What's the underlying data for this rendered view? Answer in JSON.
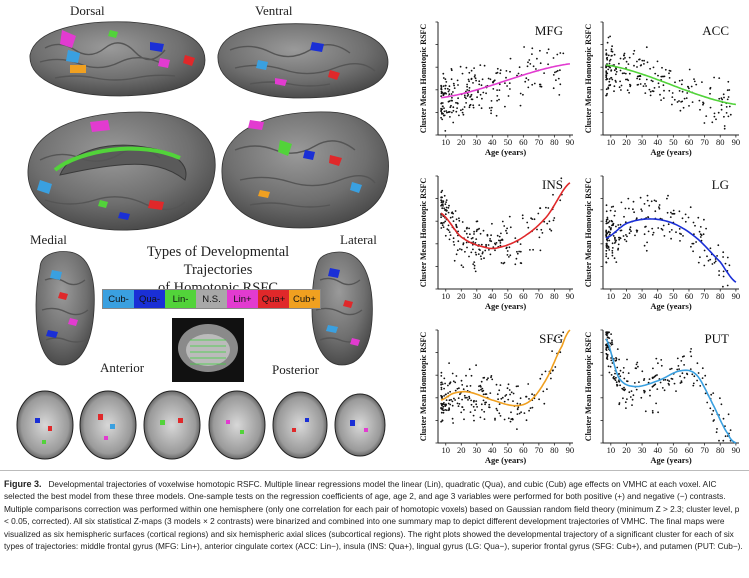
{
  "figure": {
    "views": {
      "dorsal": "Dorsal",
      "ventral": "Ventral",
      "medial": "Medial",
      "lateral": "Lateral",
      "anterior": "Anterior",
      "posterior": "Posterior"
    },
    "legend": {
      "title_line1": "Types of Developmental Trajectories",
      "title_line2": "of Homotopic RSFC",
      "items": [
        {
          "label": "Cub-",
          "color": "#3aa0e0"
        },
        {
          "label": "Qua-",
          "color": "#1a2fd6"
        },
        {
          "label": "Lin-",
          "color": "#52d33a"
        },
        {
          "label": "N.S.",
          "color": "#a8a8a8"
        },
        {
          "label": "Lin+",
          "color": "#e23bd0"
        },
        {
          "label": "Qua+",
          "color": "#e0282a"
        },
        {
          "label": "Cub+",
          "color": "#f0a020"
        }
      ]
    }
  },
  "caption": {
    "label": "Figure 3.",
    "text": "Developmental trajectories of voxelwise homotopic RSFC. Multiple linear regressions model the linear (Lin), quadratic (Qua), and cubic (Cub) age effects on VMHC at each voxel. AIC selected the best model from these three models. One-sample tests on the regression coefficients of age, age 2, and age 3 variables were performed for both positive (+) and negative (−) contrasts. Multiple comparisons correction was performed within one hemisphere (only one correlation for each pair of homotopic voxels) based on Gaussian random field theory (minimum Z > 2.3; cluster level, p < 0.05, corrected). All six statistical Z-maps (3 models × 2 contrasts) were binarized and combined into one summary map to depict different development trajectories of VMHC. The final maps were visualized as six hemispheric surfaces (cortical regions) and six hemispheric axial slices (subcortical regions). The right plots showed the developmental trajectory of a significant cluster for each of six types of trajectories: middle frontal gyrus (MFG: Lin+), anterior cingulate cortex (ACC: Lin−), insula (INS: Qua+), lingual gyrus (LG: Qua−), superior frontal gyrus (SFG: Cub+), and putamen (PUT: Cub−)."
  },
  "chart_data": [
    {
      "type": "scatter",
      "title": "MFG",
      "xlabel": "Age (years)",
      "ylabel": "Cluster Mean Homotopic RSFC",
      "xticks": [
        10,
        20,
        30,
        40,
        50,
        60,
        70,
        80,
        90
      ],
      "xlim": [
        5,
        92
      ],
      "ylim": [
        0,
        1
      ],
      "fit": {
        "model": "linear",
        "color": "#e23bd0",
        "x": [
          7,
          90
        ],
        "y": [
          0.33,
          0.63
        ]
      }
    },
    {
      "type": "scatter",
      "title": "ACC",
      "xlabel": "Age (years)",
      "ylabel": "Cluster Mean Homotopic RSFC",
      "xticks": [
        10,
        20,
        30,
        40,
        50,
        60,
        70,
        80,
        90
      ],
      "xlim": [
        5,
        92
      ],
      "ylim": [
        0,
        1
      ],
      "fit": {
        "model": "linear",
        "color": "#52d33a",
        "x": [
          7,
          90
        ],
        "y": [
          0.62,
          0.27
        ]
      }
    },
    {
      "type": "scatter",
      "title": "INS",
      "xlabel": "Age (years)",
      "ylabel": "Cluster Mean Homotopic RSFC",
      "xticks": [
        10,
        20,
        30,
        40,
        50,
        60,
        70,
        80,
        90
      ],
      "xlim": [
        5,
        92
      ],
      "ylim": [
        0,
        1
      ],
      "fit": {
        "model": "quadratic",
        "color": "#e0282a",
        "x": [
          7,
          20,
          35,
          45,
          60,
          75,
          90
        ],
        "y": [
          0.67,
          0.46,
          0.37,
          0.37,
          0.46,
          0.64,
          0.94
        ]
      }
    },
    {
      "type": "scatter",
      "title": "LG",
      "xlabel": "Age (years)",
      "ylabel": "Cluster Mean Homotopic RSFC",
      "xticks": [
        10,
        20,
        30,
        40,
        50,
        60,
        70,
        80,
        90
      ],
      "xlim": [
        5,
        92
      ],
      "ylim": [
        0,
        1
      ],
      "fit": {
        "model": "quadratic",
        "color": "#1a2fd6",
        "x": [
          7,
          20,
          35,
          50,
          65,
          80,
          90
        ],
        "y": [
          0.45,
          0.58,
          0.62,
          0.58,
          0.45,
          0.24,
          0.06
        ]
      }
    },
    {
      "type": "scatter",
      "title": "SFG",
      "xlabel": "Age (years)",
      "ylabel": "Cluster Mean Homotopic RSFC",
      "xticks": [
        10,
        20,
        30,
        40,
        50,
        60,
        70,
        80,
        90
      ],
      "xlim": [
        5,
        92
      ],
      "ylim": [
        0,
        1
      ],
      "fit": {
        "model": "cubic",
        "color": "#f0a020",
        "x": [
          7,
          15,
          25,
          40,
          55,
          65,
          75,
          85,
          90
        ],
        "y": [
          0.38,
          0.44,
          0.45,
          0.38,
          0.33,
          0.38,
          0.57,
          0.86,
          1.0
        ]
      }
    },
    {
      "type": "scatter",
      "title": "PUT",
      "xlabel": "Age (years)",
      "ylabel": "Cluster Mean Homotopic RSFC",
      "xticks": [
        10,
        20,
        30,
        40,
        50,
        60,
        70,
        80,
        90
      ],
      "xlim": [
        5,
        92
      ],
      "ylim": [
        0,
        1
      ],
      "fit": {
        "model": "cubic",
        "color": "#3aa0e0",
        "x": [
          7,
          15,
          25,
          40,
          55,
          65,
          75,
          85,
          90
        ],
        "y": [
          0.92,
          0.58,
          0.5,
          0.55,
          0.64,
          0.6,
          0.35,
          0.08,
          0.0
        ]
      }
    }
  ]
}
